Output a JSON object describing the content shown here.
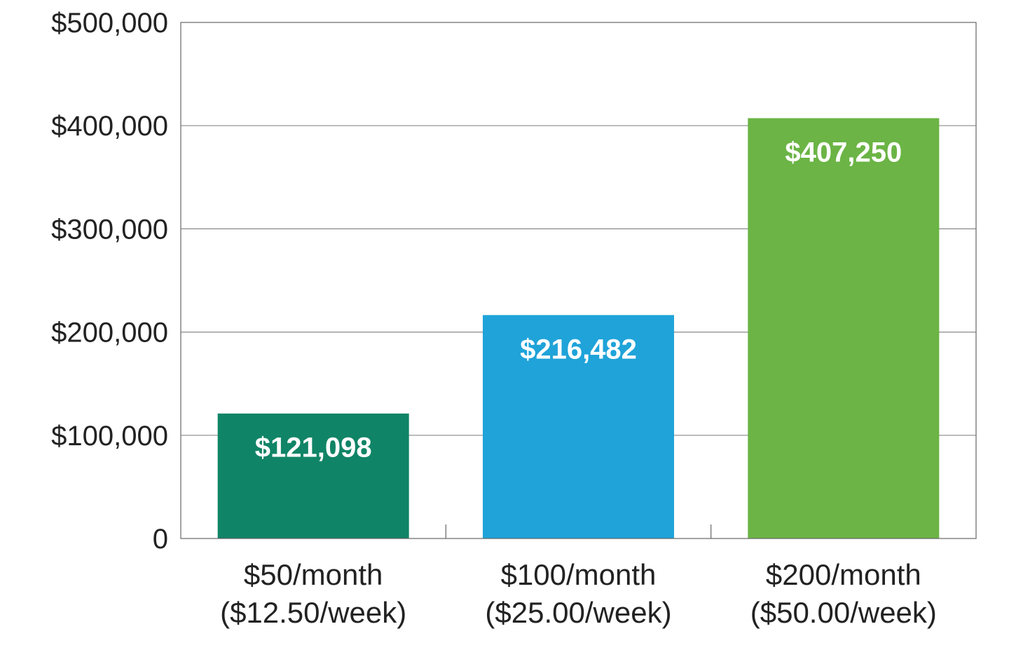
{
  "chart_data": {
    "type": "bar",
    "categories": [
      {
        "line1": "$50/month",
        "line2": "($12.50/week)"
      },
      {
        "line1": "$100/month",
        "line2": "($25.00/week)"
      },
      {
        "line1": "$200/month",
        "line2": "($50.00/week)"
      }
    ],
    "values": [
      121098,
      216482,
      407250
    ],
    "value_labels": [
      "$121,098",
      "$216,482",
      "$407,250"
    ],
    "bar_colors": [
      "#108466",
      "#1fa3d9",
      "#6bb445"
    ],
    "ylim": [
      0,
      500000
    ],
    "y_ticks": [
      0,
      100000,
      200000,
      300000,
      400000,
      500000
    ],
    "y_tick_labels": [
      "0",
      "$100,000",
      "$200,000",
      "$300,000",
      "$400,000",
      "$500,000"
    ],
    "grid": true,
    "legend": false,
    "title": "",
    "xlabel": "",
    "ylabel": ""
  }
}
